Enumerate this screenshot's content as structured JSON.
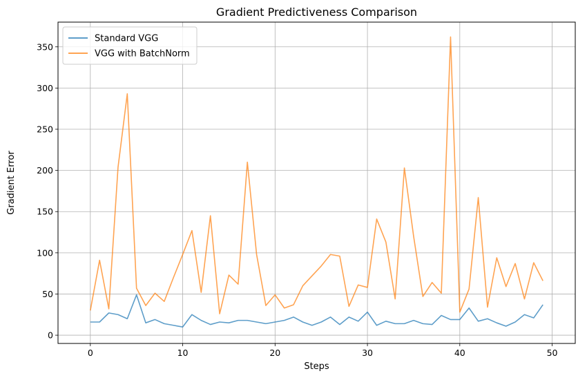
{
  "chart_data": {
    "type": "line",
    "title": "Gradient Predictiveness Comparison",
    "xlabel": "Steps",
    "ylabel": "Gradient Error",
    "xlim": [
      -3.5,
      52.5
    ],
    "ylim": [
      -10,
      380
    ],
    "xticks": [
      0,
      10,
      20,
      30,
      40,
      50
    ],
    "yticks": [
      0,
      50,
      100,
      150,
      200,
      250,
      300,
      350
    ],
    "grid": true,
    "legend_position": "upper-left",
    "x": [
      0,
      1,
      2,
      3,
      4,
      5,
      6,
      7,
      8,
      9,
      10,
      11,
      12,
      13,
      14,
      15,
      16,
      17,
      18,
      19,
      20,
      21,
      22,
      23,
      24,
      25,
      26,
      27,
      28,
      29,
      30,
      31,
      32,
      33,
      34,
      35,
      36,
      37,
      38,
      39,
      40,
      41,
      42,
      43,
      44,
      45,
      46,
      47,
      48,
      49
    ],
    "series": [
      {
        "name": "Standard VGG",
        "color": "#1f77b4",
        "values": [
          16,
          16,
          27,
          25,
          20,
          49,
          15,
          19,
          14,
          12,
          10,
          25,
          18,
          13,
          16,
          15,
          18,
          18,
          16,
          14,
          16,
          18,
          22,
          16,
          12,
          16,
          22,
          13,
          22,
          17,
          28,
          12,
          17,
          14,
          14,
          18,
          14,
          13,
          24,
          19,
          19,
          33,
          17,
          20,
          15,
          11,
          16,
          25,
          21,
          37
        ]
      },
      {
        "name": "VGG with BatchNorm",
        "color": "#ff7f0e",
        "values": [
          30,
          91,
          32,
          204,
          293,
          57,
          36,
          51,
          41,
          70,
          98,
          127,
          52,
          145,
          26,
          73,
          62,
          210,
          98,
          36,
          49,
          33,
          37,
          60,
          72,
          84,
          98,
          96,
          35,
          61,
          58,
          141,
          113,
          44,
          203,
          120,
          47,
          64,
          51,
          362,
          28,
          56,
          167,
          34,
          94,
          59,
          87,
          44,
          88,
          66
        ]
      }
    ]
  }
}
